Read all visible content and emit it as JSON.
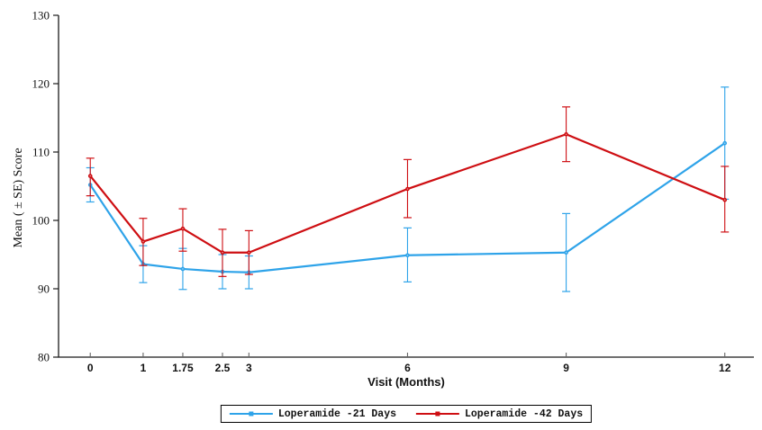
{
  "figure": {
    "title": "",
    "background": "#ffffff"
  },
  "chart_data": {
    "type": "line",
    "title": "",
    "xlabel": "Visit (Months)",
    "ylabel": "Mean ( ± SE) Score",
    "xlim": [
      -0.6,
      12.55
    ],
    "ylim": [
      80,
      130
    ],
    "x_ticks": [
      0,
      1,
      1.75,
      2.5,
      3,
      6,
      9,
      12
    ],
    "y_ticks": [
      80,
      90,
      100,
      110,
      120,
      130
    ],
    "grid": false,
    "legend_position": "bottom-center",
    "error_bars": "± SE",
    "series": [
      {
        "name": "Loperamide -21 Days",
        "color": "#2EA3E9",
        "x": [
          0,
          1,
          1.75,
          2.5,
          3,
          6,
          9,
          12
        ],
        "mean": [
          105.2,
          93.6,
          92.9,
          92.5,
          92.4,
          94.9,
          95.3,
          111.3
        ],
        "lo": [
          102.7,
          90.9,
          89.9,
          90.0,
          90.0,
          91.0,
          89.6,
          103.1
        ],
        "hi": [
          107.7,
          96.3,
          95.9,
          95.0,
          94.8,
          98.9,
          101.0,
          119.5
        ]
      },
      {
        "name": "Loperamide -42 Days",
        "color": "#CE0E12",
        "x": [
          0,
          1,
          1.75,
          2.5,
          3,
          6,
          9,
          12
        ],
        "mean": [
          106.5,
          96.9,
          98.8,
          95.3,
          95.3,
          104.6,
          112.6,
          103.0
        ],
        "lo": [
          103.6,
          93.4,
          95.5,
          91.8,
          92.1,
          100.4,
          108.6,
          98.3
        ],
        "hi": [
          109.1,
          100.3,
          101.7,
          98.7,
          98.5,
          108.9,
          116.6,
          107.9
        ]
      }
    ]
  }
}
